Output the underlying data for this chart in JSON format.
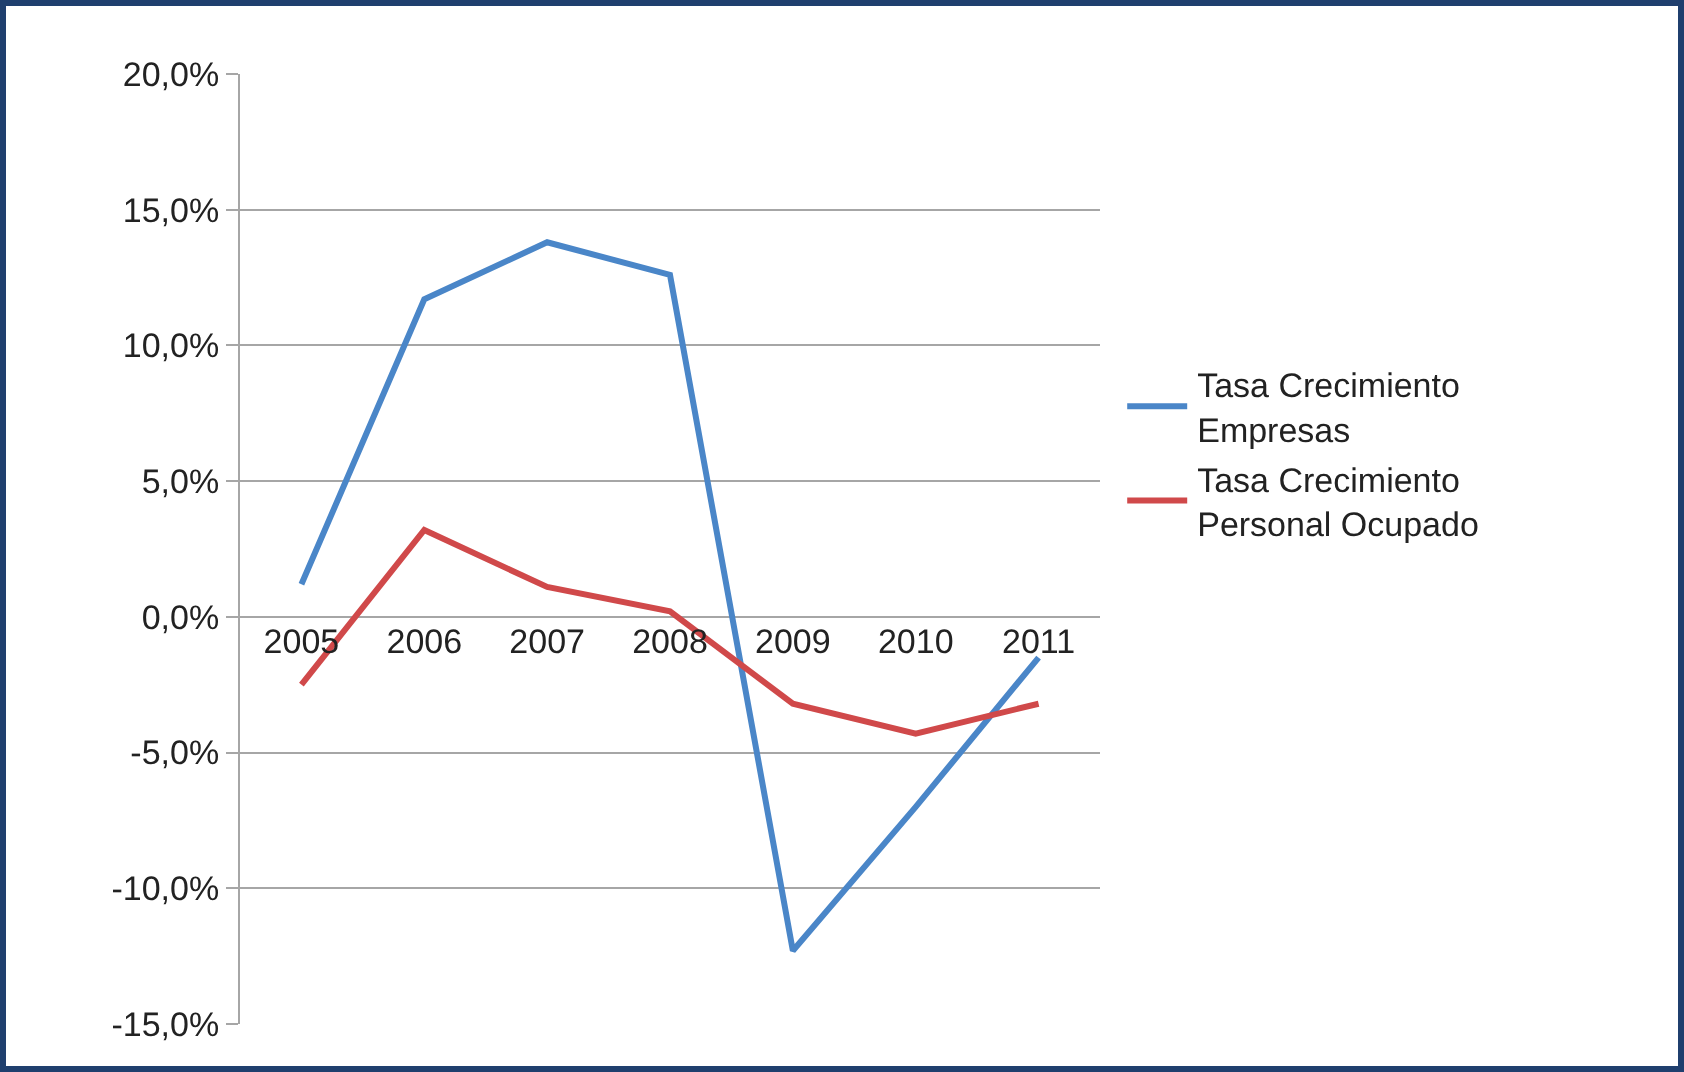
{
  "chart_data": {
    "type": "line",
    "categories": [
      "2005",
      "2006",
      "2007",
      "2008",
      "2009",
      "2010",
      "2011"
    ],
    "series": [
      {
        "name": "Tasa Crecimiento Empresas",
        "color": "#4a86c8",
        "values": [
          1.2,
          11.7,
          13.8,
          12.6,
          -12.3,
          -7.0,
          -1.5
        ]
      },
      {
        "name": "Tasa Crecimiento Personal Ocupado",
        "color": "#d0494a",
        "values": [
          -2.5,
          3.2,
          1.1,
          0.2,
          -3.2,
          -4.3,
          -3.2
        ]
      }
    ],
    "ylim": [
      -15,
      20
    ],
    "yticks": [
      {
        "value": -15,
        "label": "-15,0%"
      },
      {
        "value": -10,
        "label": "-10,0%"
      },
      {
        "value": -5,
        "label": "-5,0%"
      },
      {
        "value": 0,
        "label": "0,0%"
      },
      {
        "value": 5,
        "label": "5,0%"
      },
      {
        "value": 10,
        "label": "10,0%"
      },
      {
        "value": 15,
        "label": "15,0%"
      },
      {
        "value": 20,
        "label": "20,0%"
      }
    ],
    "grid": "y",
    "legend": "right",
    "marker": "none",
    "line_style": "solid"
  }
}
